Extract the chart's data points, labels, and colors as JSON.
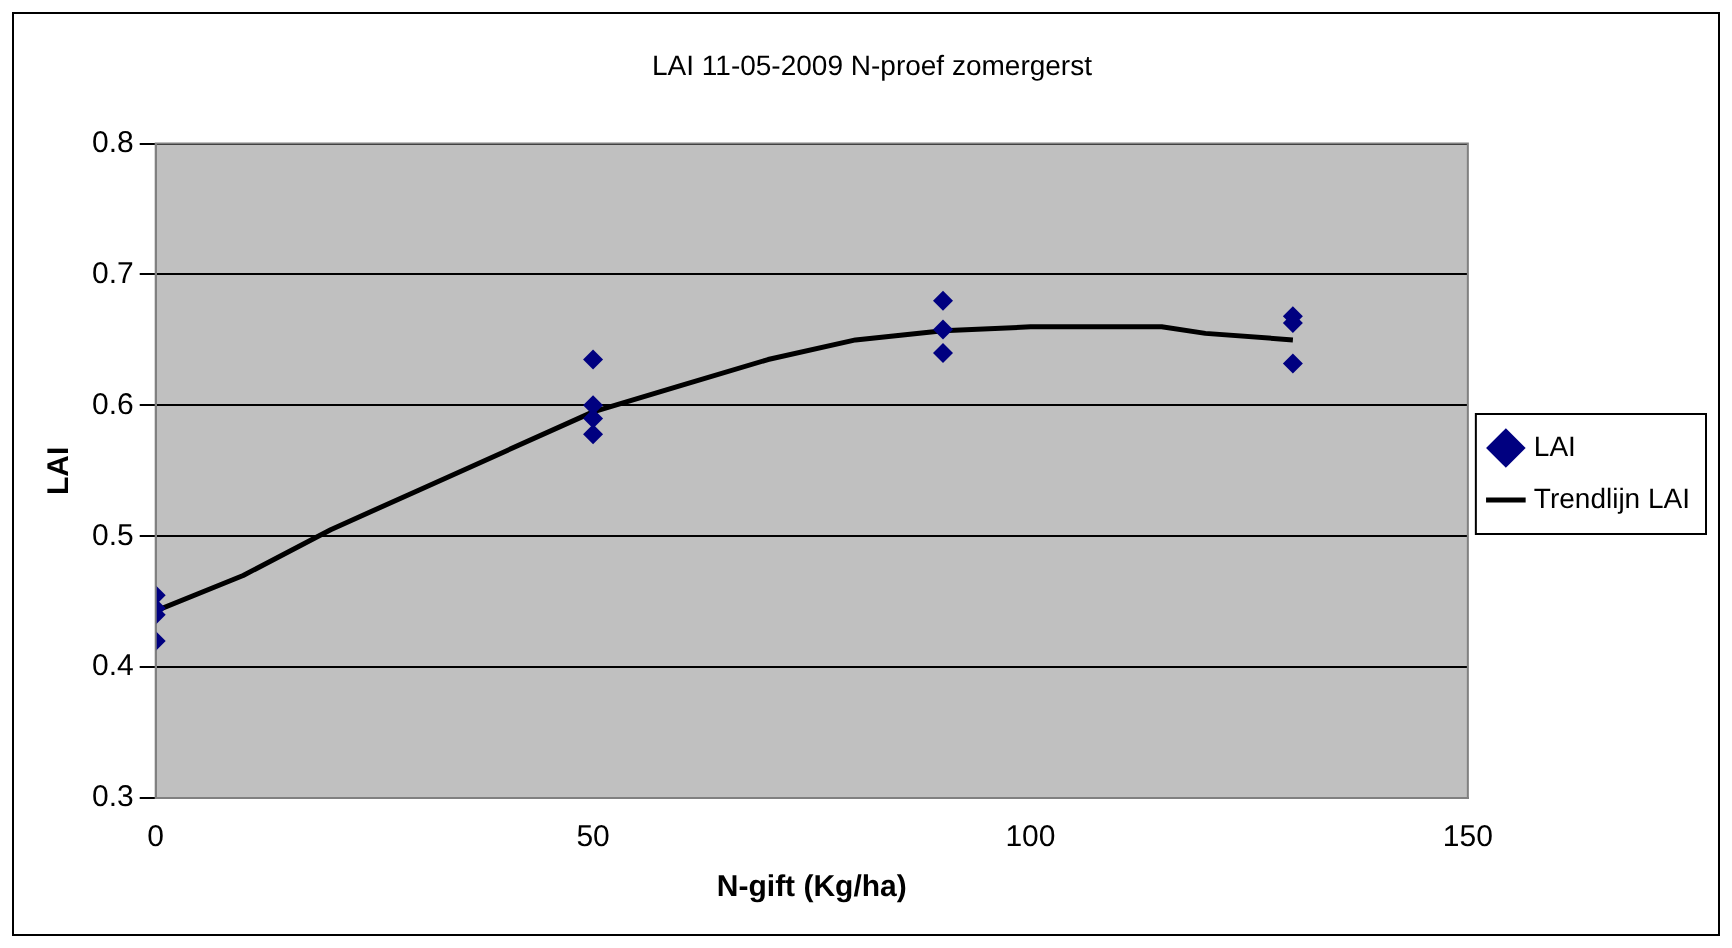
{
  "chart_data": {
    "type": "scatter",
    "title": "LAI 11-05-2009 N-proef zomergerst",
    "xlabel": "N-gift (Kg/ha)",
    "ylabel": "LAI",
    "xlim": [
      0,
      150
    ],
    "xticks": [
      0,
      50,
      100,
      150
    ],
    "ylim": [
      0.3,
      0.8
    ],
    "yticks": [
      0.3,
      0.4,
      0.5,
      0.6,
      0.7,
      0.8
    ],
    "grid": "y",
    "legend": "right",
    "series": [
      {
        "name": "LAI",
        "color": "#000080",
        "marker": "diamond",
        "x": [
          0,
          0,
          0,
          0,
          50,
          50,
          50,
          50,
          90,
          90,
          90,
          130,
          130,
          130
        ],
        "values": [
          0.455,
          0.445,
          0.44,
          0.42,
          0.635,
          0.6,
          0.59,
          0.578,
          0.68,
          0.658,
          0.64,
          0.668,
          0.663,
          0.632
        ]
      },
      {
        "name": "Trendlijn LAI",
        "type": "line",
        "color": "#000000",
        "x": [
          0,
          10,
          20,
          30,
          40,
          50,
          60,
          70,
          80,
          90,
          100,
          110,
          115,
          120,
          130
        ],
        "values": [
          0.443,
          0.47,
          0.505,
          0.535,
          0.565,
          0.595,
          0.615,
          0.635,
          0.65,
          0.657,
          0.66,
          0.66,
          0.66,
          0.655,
          0.65
        ]
      }
    ]
  }
}
